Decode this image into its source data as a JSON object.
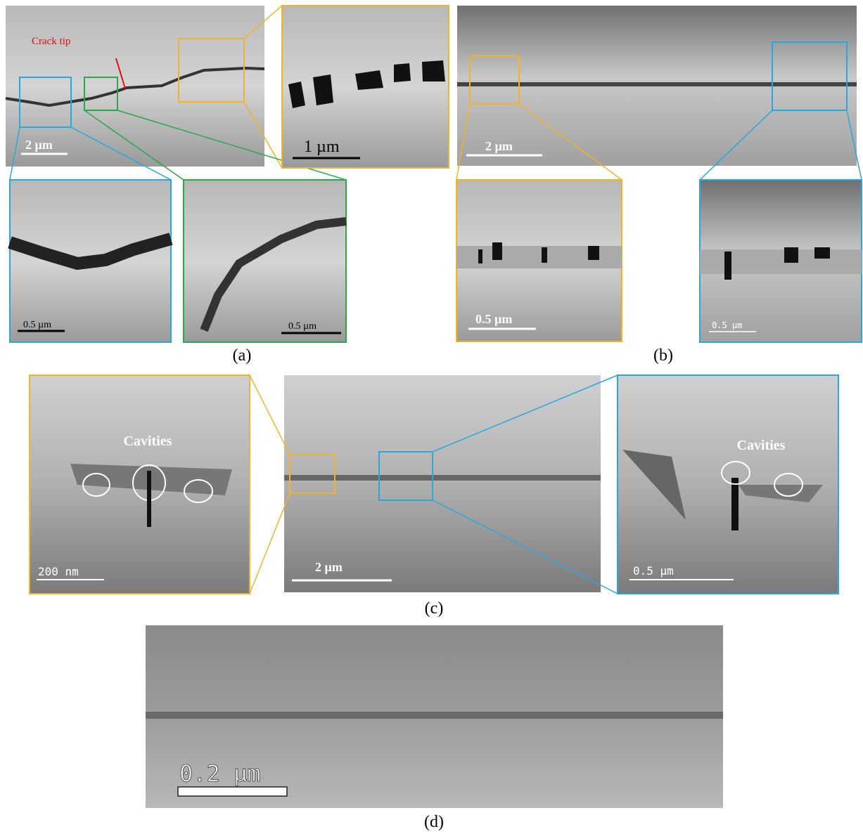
{
  "panels": {
    "a": {
      "label": "(a)",
      "main": {
        "annotation": "Crack tip",
        "scale": "2 µm"
      },
      "zoom": {
        "scale": "1 µm"
      },
      "insets": [
        {
          "scale": "0.5 µm"
        },
        {
          "scale": "0.5 µm"
        }
      ]
    },
    "b": {
      "label": "(b)",
      "main": {
        "scale": "2 µm"
      },
      "insets": [
        {
          "scale": "0.5 µm"
        },
        {
          "scale": "0.5 µm"
        }
      ]
    },
    "c": {
      "label": "(c)",
      "main": {
        "scale": "2 µm"
      },
      "insets": [
        {
          "annotation": "Cavities",
          "scale": "200 nm"
        },
        {
          "annotation": "Cavities",
          "scale": "0.5 µm"
        }
      ]
    },
    "d": {
      "label": "(d)",
      "main": {
        "scale": "0.2 µm"
      }
    }
  }
}
